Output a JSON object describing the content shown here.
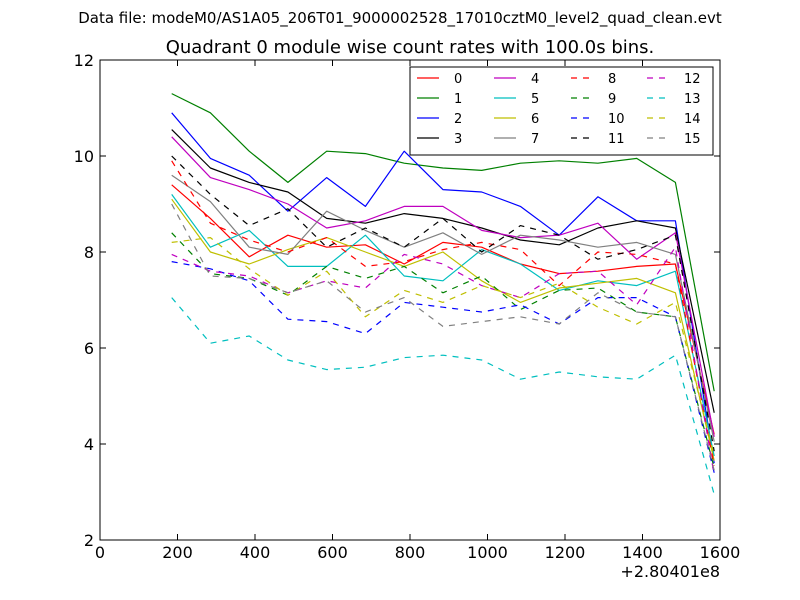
{
  "header": "Data file: modeM0/AS1A05_206T01_9000002528_17010cztM0_level2_quad_clean.evt",
  "chart_data": {
    "type": "line",
    "title": "Quadrant 0 module wise count rates with 100.0s bins.",
    "xlabel": "",
    "ylabel": "",
    "x_offset_label": "+2.80401e8",
    "xlim": [
      0,
      1600
    ],
    "ylim": [
      2,
      12
    ],
    "xticks": [
      0,
      200,
      400,
      600,
      800,
      1000,
      1200,
      1400,
      1600
    ],
    "xtick_labels": [
      "0",
      "200",
      "400",
      "600",
      "800",
      "1000",
      "1200",
      "1400",
      "1600"
    ],
    "yticks": [
      2,
      4,
      6,
      8,
      10,
      12
    ],
    "ytick_labels": [
      "2",
      "4",
      "6",
      "8",
      "10",
      "12"
    ],
    "grid": false,
    "legend_position": "top-right",
    "x": [
      185,
      285,
      385,
      485,
      585,
      685,
      785,
      885,
      985,
      1085,
      1185,
      1285,
      1385,
      1485,
      1585
    ],
    "series": [
      {
        "name": "0",
        "color": "#ff0000",
        "dashed": false,
        "values": [
          9.4,
          8.7,
          7.9,
          8.35,
          8.1,
          8.15,
          7.75,
          8.2,
          8.1,
          7.75,
          7.55,
          7.6,
          7.7,
          7.75,
          4.2
        ]
      },
      {
        "name": "1",
        "color": "#008000",
        "dashed": false,
        "values": [
          11.3,
          10.9,
          10.1,
          9.45,
          10.1,
          10.05,
          9.85,
          9.75,
          9.7,
          9.85,
          9.9,
          9.85,
          9.95,
          9.45,
          5.1
        ]
      },
      {
        "name": "2",
        "color": "#0000ff",
        "dashed": false,
        "values": [
          10.9,
          9.95,
          9.6,
          8.85,
          9.55,
          8.95,
          10.1,
          9.3,
          9.25,
          8.95,
          8.35,
          9.15,
          8.65,
          8.65,
          3.6
        ]
      },
      {
        "name": "3",
        "color": "#000000",
        "dashed": false,
        "values": [
          10.55,
          9.75,
          9.45,
          9.25,
          8.7,
          8.6,
          8.8,
          8.7,
          8.5,
          8.25,
          8.15,
          8.5,
          8.65,
          8.5,
          4.65
        ]
      },
      {
        "name": "4",
        "color": "#bf00bf",
        "dashed": false,
        "values": [
          10.4,
          9.55,
          9.3,
          9.0,
          8.5,
          8.65,
          8.95,
          8.95,
          8.45,
          8.3,
          8.35,
          8.6,
          7.85,
          8.4,
          4.15
        ]
      },
      {
        "name": "5",
        "color": "#00bfbf",
        "dashed": false,
        "values": [
          9.2,
          8.1,
          8.45,
          7.7,
          7.7,
          8.35,
          7.5,
          7.4,
          8.05,
          7.75,
          7.2,
          7.4,
          7.3,
          7.6,
          3.75
        ]
      },
      {
        "name": "6",
        "color": "#bfbf00",
        "dashed": false,
        "values": [
          9.1,
          8.0,
          7.75,
          8.05,
          8.3,
          8.0,
          7.7,
          8.0,
          7.4,
          6.95,
          7.25,
          7.35,
          7.45,
          7.15,
          3.65
        ]
      },
      {
        "name": "7",
        "color": "#808080",
        "dashed": false,
        "values": [
          9.6,
          9.05,
          8.1,
          7.95,
          8.85,
          8.45,
          8.1,
          8.4,
          7.95,
          8.35,
          8.25,
          8.1,
          8.2,
          7.95,
          4.05
        ]
      },
      {
        "name": "8",
        "color": "#ff0000",
        "dashed": true,
        "values": [
          9.9,
          8.6,
          8.25,
          8.0,
          8.3,
          7.7,
          7.8,
          8.05,
          8.2,
          8.05,
          7.3,
          8.0,
          7.95,
          7.75,
          3.55
        ]
      },
      {
        "name": "9",
        "color": "#008000",
        "dashed": true,
        "values": [
          8.4,
          7.55,
          7.45,
          7.1,
          7.7,
          7.45,
          7.7,
          7.15,
          7.5,
          6.8,
          7.2,
          7.25,
          6.75,
          6.65,
          3.5
        ]
      },
      {
        "name": "10",
        "color": "#0000ff",
        "dashed": true,
        "values": [
          7.8,
          7.65,
          7.4,
          6.6,
          6.55,
          6.3,
          6.95,
          6.85,
          6.75,
          6.9,
          6.5,
          7.05,
          7.05,
          6.65,
          3.4
        ]
      },
      {
        "name": "11",
        "color": "#000000",
        "dashed": true,
        "values": [
          10.0,
          9.2,
          8.55,
          8.9,
          8.1,
          8.5,
          8.1,
          8.7,
          8.0,
          8.55,
          8.35,
          7.85,
          8.05,
          8.35,
          3.85
        ]
      },
      {
        "name": "12",
        "color": "#bf00bf",
        "dashed": true,
        "values": [
          7.95,
          7.6,
          7.5,
          7.15,
          7.4,
          7.25,
          7.95,
          7.75,
          7.3,
          7.05,
          7.55,
          7.6,
          6.9,
          8.1,
          3.35
        ]
      },
      {
        "name": "13",
        "color": "#00bfbf",
        "dashed": true,
        "values": [
          7.05,
          6.1,
          6.25,
          5.75,
          5.55,
          5.6,
          5.8,
          5.85,
          5.75,
          5.35,
          5.5,
          5.4,
          5.35,
          5.85,
          2.95
        ]
      },
      {
        "name": "14",
        "color": "#bfbf00",
        "dashed": true,
        "values": [
          8.2,
          8.3,
          7.65,
          7.1,
          7.6,
          6.65,
          7.2,
          6.95,
          7.3,
          7.05,
          7.35,
          6.85,
          6.5,
          6.95,
          3.75
        ]
      },
      {
        "name": "15",
        "color": "#808080",
        "dashed": true,
        "values": [
          9.0,
          7.5,
          7.45,
          7.15,
          7.4,
          6.75,
          7.05,
          6.45,
          6.55,
          6.65,
          6.5,
          7.15,
          6.75,
          6.65,
          3.45
        ]
      }
    ]
  }
}
